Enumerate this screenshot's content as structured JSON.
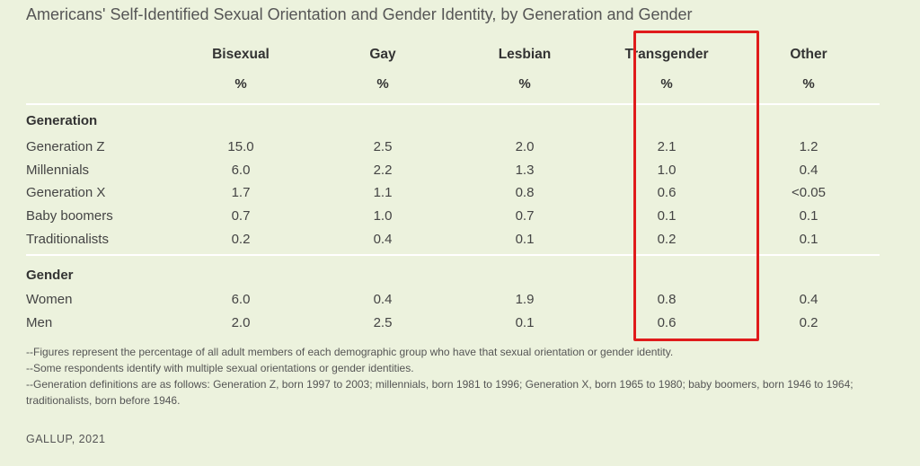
{
  "title": "Americans' Self-Identified Sexual Orientation and Gender Identity, by Generation and Gender",
  "chart_data": {
    "type": "table",
    "columns": [
      "Bisexual",
      "Gay",
      "Lesbian",
      "Transgender",
      "Other"
    ],
    "unit": "%",
    "highlighted_column": "Transgender",
    "highlight_color": "#e01b1b",
    "sections": [
      {
        "name": "Generation",
        "rows": [
          {
            "label": "Generation Z",
            "values": [
              "15.0",
              "2.5",
              "2.0",
              "2.1",
              "1.2"
            ]
          },
          {
            "label": "Millennials",
            "values": [
              "6.0",
              "2.2",
              "1.3",
              "1.0",
              "0.4"
            ]
          },
          {
            "label": "Generation X",
            "values": [
              "1.7",
              "1.1",
              "0.8",
              "0.6",
              "<0.05"
            ]
          },
          {
            "label": "Baby boomers",
            "values": [
              "0.7",
              "1.0",
              "0.7",
              "0.1",
              "0.1"
            ]
          },
          {
            "label": "Traditionalists",
            "values": [
              "0.2",
              "0.4",
              "0.1",
              "0.2",
              "0.1"
            ]
          }
        ]
      },
      {
        "name": "Gender",
        "rows": [
          {
            "label": "Women",
            "values": [
              "6.0",
              "0.4",
              "1.9",
              "0.8",
              "0.4"
            ]
          },
          {
            "label": "Men",
            "values": [
              "2.0",
              "2.5",
              "0.1",
              "0.6",
              "0.2"
            ]
          }
        ]
      }
    ]
  },
  "notes": [
    "--Figures represent the percentage of all adult members of each demographic group who have that sexual orientation or gender identity.",
    "--Some respondents identify with multiple sexual orientations or gender identities.",
    "--Generation definitions are as follows: Generation Z, born 1997 to 2003; millennials, born 1981 to 1996; Generation X, born 1965 to 1980; baby boomers, born 1946 to 1964; traditionalists, born before 1946."
  ],
  "source": "GALLUP, 2021"
}
